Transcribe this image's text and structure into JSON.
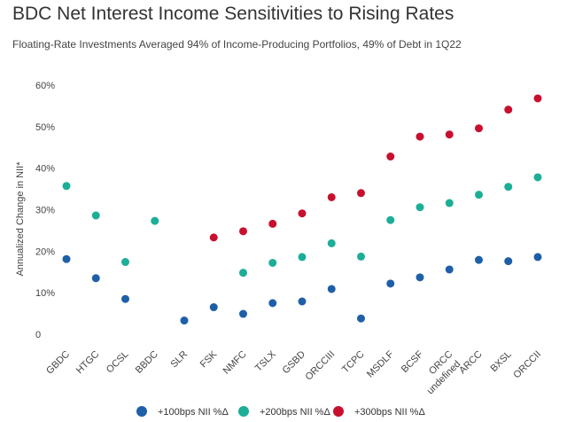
{
  "chart_data": {
    "type": "scatter",
    "title": "BDC Net Interest Income Sensitivities to Rising Rates",
    "subtitle": "Floating-Rate Investments Averaged 94% of Income-Producing Portfolios, 49% of Debt in 1Q22",
    "ylabel": "Annualized Change in NII*",
    "ylim": [
      0,
      60
    ],
    "yticks": [
      "0",
      "10%",
      "20%",
      "30%",
      "40%",
      "50%",
      "60%"
    ],
    "categories": [
      "GBDC",
      "HTGC",
      "OCSL",
      "BBDC",
      "SLR",
      "FSK",
      "NMFC",
      "TSLX",
      "GSBD",
      "ORCCIII",
      "TCPC",
      "MSDLF",
      "BCSF",
      "ORCC",
      "ARCC",
      "BXSL",
      "ORCCII"
    ],
    "category_sublabels": [
      "",
      "",
      "",
      "",
      "",
      "",
      "",
      "",
      "",
      "",
      "",
      "",
      "",
      "undefined",
      "",
      "",
      ""
    ],
    "series": [
      {
        "name": "+100bps NII %Δ",
        "color": "#1f5fa8",
        "values": [
          18.1,
          13.5,
          8.5,
          null,
          3.3,
          6.5,
          4.9,
          7.5,
          7.9,
          10.9,
          3.8,
          12.2,
          13.7,
          15.6,
          17.9,
          17.6,
          18.6
        ]
      },
      {
        "name": "+200bps NII %Δ",
        "color": "#1cae96",
        "values": [
          35.7,
          28.6,
          17.4,
          27.3,
          null,
          null,
          14.8,
          17.2,
          18.6,
          21.9,
          18.7,
          27.5,
          30.6,
          31.6,
          33.6,
          35.5,
          37.8
        ]
      },
      {
        "name": "+300bps NII %Δ",
        "color": "#c8102e",
        "values": [
          null,
          null,
          null,
          null,
          null,
          23.3,
          24.8,
          26.6,
          29.1,
          33.0,
          34.0,
          42.8,
          47.6,
          48.1,
          49.6,
          54.1,
          56.8
        ]
      }
    ]
  }
}
